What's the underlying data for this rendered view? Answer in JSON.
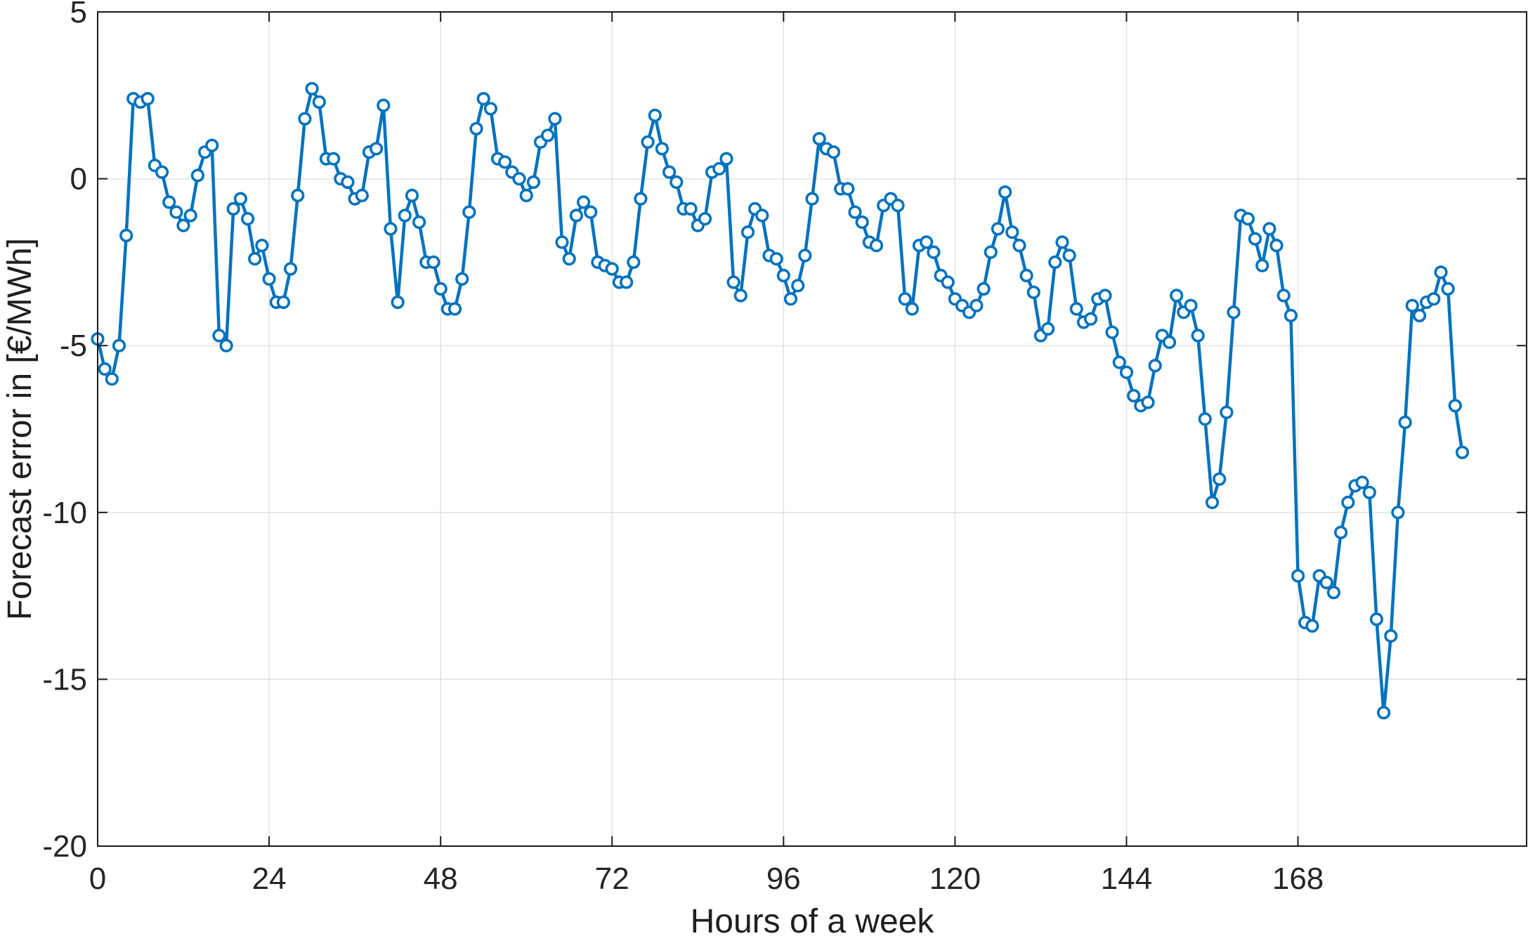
{
  "figure": {
    "background": "#ffffff"
  },
  "chart_data": {
    "type": "line",
    "title": "",
    "xlabel": "Hours of a week",
    "ylabel": "Forecast error in [€/MWh]",
    "x_first": 0,
    "x_step": 1,
    "values": [
      -4.8,
      -5.7,
      -6.0,
      -5.0,
      -1.7,
      2.4,
      2.3,
      2.4,
      0.4,
      0.2,
      -0.7,
      -1.0,
      -1.4,
      -1.1,
      0.1,
      0.8,
      1.0,
      -4.7,
      -5.0,
      -0.9,
      -0.6,
      -1.2,
      -2.4,
      -2.0,
      -3.0,
      -3.7,
      -3.7,
      -2.7,
      -0.5,
      1.8,
      2.7,
      2.3,
      0.6,
      0.6,
      0.0,
      -0.1,
      -0.6,
      -0.5,
      0.8,
      0.9,
      2.2,
      -1.5,
      -3.7,
      -1.1,
      -0.5,
      -1.3,
      -2.5,
      -2.5,
      -3.3,
      -3.9,
      -3.9,
      -3.0,
      -1.0,
      1.5,
      2.4,
      2.1,
      0.6,
      0.5,
      0.2,
      0.0,
      -0.5,
      -0.1,
      1.1,
      1.3,
      1.8,
      -1.9,
      -2.4,
      -1.1,
      -0.7,
      -1.0,
      -2.5,
      -2.6,
      -2.7,
      -3.1,
      -3.1,
      -2.5,
      -0.6,
      1.1,
      1.9,
      0.9,
      0.2,
      -0.1,
      -0.9,
      -0.9,
      -1.4,
      -1.2,
      0.2,
      0.3,
      0.6,
      -3.1,
      -3.5,
      -1.6,
      -0.9,
      -1.1,
      -2.3,
      -2.4,
      -2.9,
      -3.6,
      -3.2,
      -2.3,
      -0.6,
      1.2,
      0.9,
      0.8,
      -0.3,
      -0.3,
      -1.0,
      -1.3,
      -1.9,
      -2.0,
      -0.8,
      -0.6,
      -0.8,
      -3.6,
      -3.9,
      -2.0,
      -1.9,
      -2.2,
      -2.9,
      -3.1,
      -3.6,
      -3.8,
      -4.0,
      -3.8,
      -3.3,
      -2.2,
      -1.5,
      -0.4,
      -1.6,
      -2.0,
      -2.9,
      -3.4,
      -4.7,
      -4.5,
      -2.5,
      -1.9,
      -2.3,
      -3.9,
      -4.3,
      -4.2,
      -3.6,
      -3.5,
      -4.6,
      -5.5,
      -5.8,
      -6.5,
      -6.8,
      -6.7,
      -5.6,
      -4.7,
      -4.9,
      -3.5,
      -4.0,
      -3.8,
      -4.7,
      -7.2,
      -9.7,
      -9.0,
      -7.0,
      -4.0,
      -1.1,
      -1.2,
      -1.8,
      -2.6,
      -1.5,
      -2.0,
      -3.5,
      -4.1,
      -11.9,
      -13.3,
      -13.4,
      -11.9,
      -12.1,
      -12.4,
      -10.6,
      -9.7,
      -9.2,
      -9.1,
      -9.4,
      -13.2,
      -16.0,
      -13.7,
      -10.0,
      -7.3,
      -3.8,
      -4.1,
      -3.7,
      -3.6,
      -2.8,
      -3.3,
      -6.8,
      -8.2
    ],
    "xlim": [
      0,
      200
    ],
    "ylim": [
      -20,
      5
    ],
    "xticks": [
      0,
      24,
      48,
      72,
      96,
      120,
      144,
      168
    ],
    "yticks": [
      5,
      0,
      -5,
      -10,
      -15,
      -20
    ],
    "grid": true,
    "legend_position": "none",
    "line_color": "#0072BD",
    "marker": "circle-hollow",
    "marker_fill": "#ffffff",
    "axis_color": "#1a1a1a",
    "grid_color": "#e2e2e2",
    "tick_label_color": "#252525"
  }
}
